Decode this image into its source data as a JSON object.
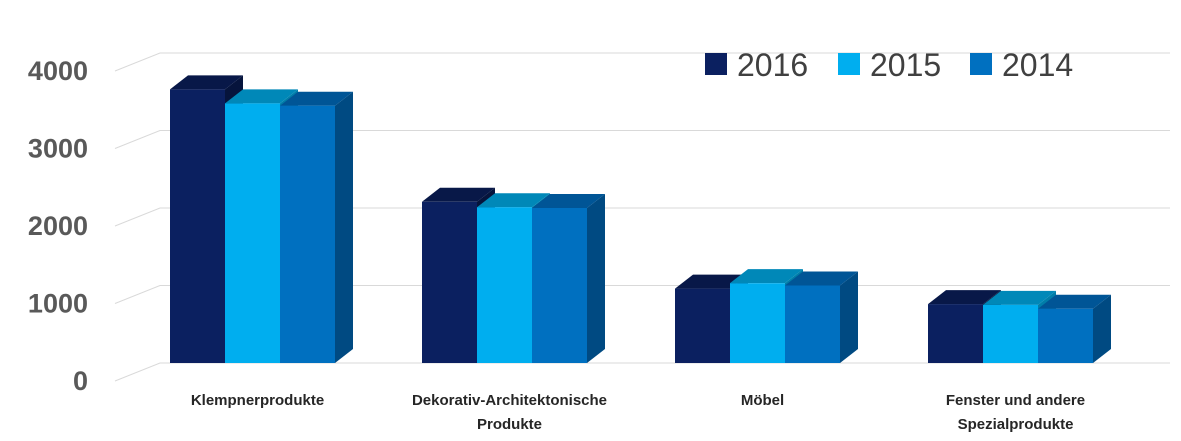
{
  "chart_data": {
    "type": "bar",
    "title": "",
    "xlabel": "",
    "ylabel": "",
    "ylim": [
      0,
      4000
    ],
    "yticks": [
      "0",
      "1000",
      "2000",
      "3000",
      "4000"
    ],
    "grid": true,
    "legend_position": "top-right",
    "categories": [
      [
        "Klempnerprodukte"
      ],
      [
        "Dekorativ-Architektonische",
        "Produkte"
      ],
      [
        "Möbel"
      ],
      [
        "Fenster und andere",
        "Spezialprodukte"
      ]
    ],
    "series": [
      {
        "name": "2016",
        "values": [
          3530,
          2080,
          960,
          760
        ],
        "color": "#0b2060",
        "top": "#081848",
        "side": "#06143c"
      },
      {
        "name": "2015",
        "values": [
          3350,
          2010,
          1030,
          750
        ],
        "color": "#00aeef",
        "top": "#0088b8",
        "side": "#007ea9"
      },
      {
        "name": "2014",
        "values": [
          3320,
          2000,
          1000,
          700
        ],
        "color": "#0070c0",
        "top": "#005596",
        "side": "#004a82"
      }
    ]
  }
}
